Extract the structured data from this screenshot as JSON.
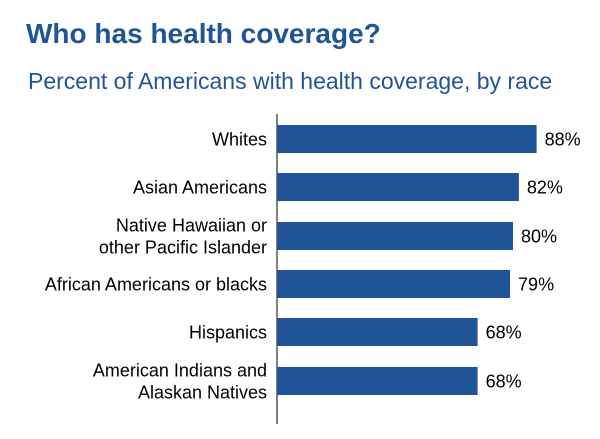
{
  "header": {
    "title": "Who has health coverage?",
    "subtitle": "Percent of Americans with health coverage, by race"
  },
  "colors": {
    "title": "#1f5497",
    "bar": "#1f5497",
    "axis": "#000000",
    "text": "#000000"
  },
  "chart_data": {
    "type": "bar",
    "orientation": "horizontal",
    "title": "Who has health coverage?",
    "subtitle": "Percent of Americans with health coverage, by race",
    "categories": [
      [
        "Whites"
      ],
      [
        "Asian Americans"
      ],
      [
        "Native Hawaiian or",
        "other Pacific Islander"
      ],
      [
        "African Americans or blacks"
      ],
      [
        "Hispanics"
      ],
      [
        "American Indians and",
        "Alaskan Natives"
      ]
    ],
    "values": [
      88,
      82,
      80,
      79,
      68,
      68
    ],
    "value_labels": [
      "88%",
      "82%",
      "80%",
      "79%",
      "68%",
      "68%"
    ],
    "xlabel": "",
    "ylabel": "",
    "xlim": [
      0,
      100
    ],
    "grid": false,
    "legend": "none"
  }
}
